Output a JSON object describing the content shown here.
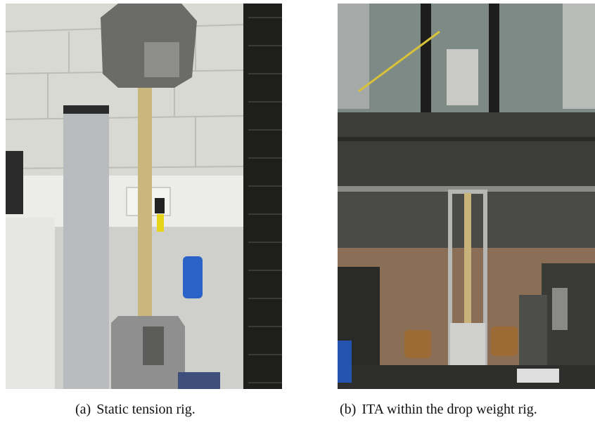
{
  "figures": [
    {
      "label": "(a)",
      "caption": "Static tension rig."
    },
    {
      "label": "(b)",
      "caption": "ITA within the drop weight rig."
    }
  ]
}
